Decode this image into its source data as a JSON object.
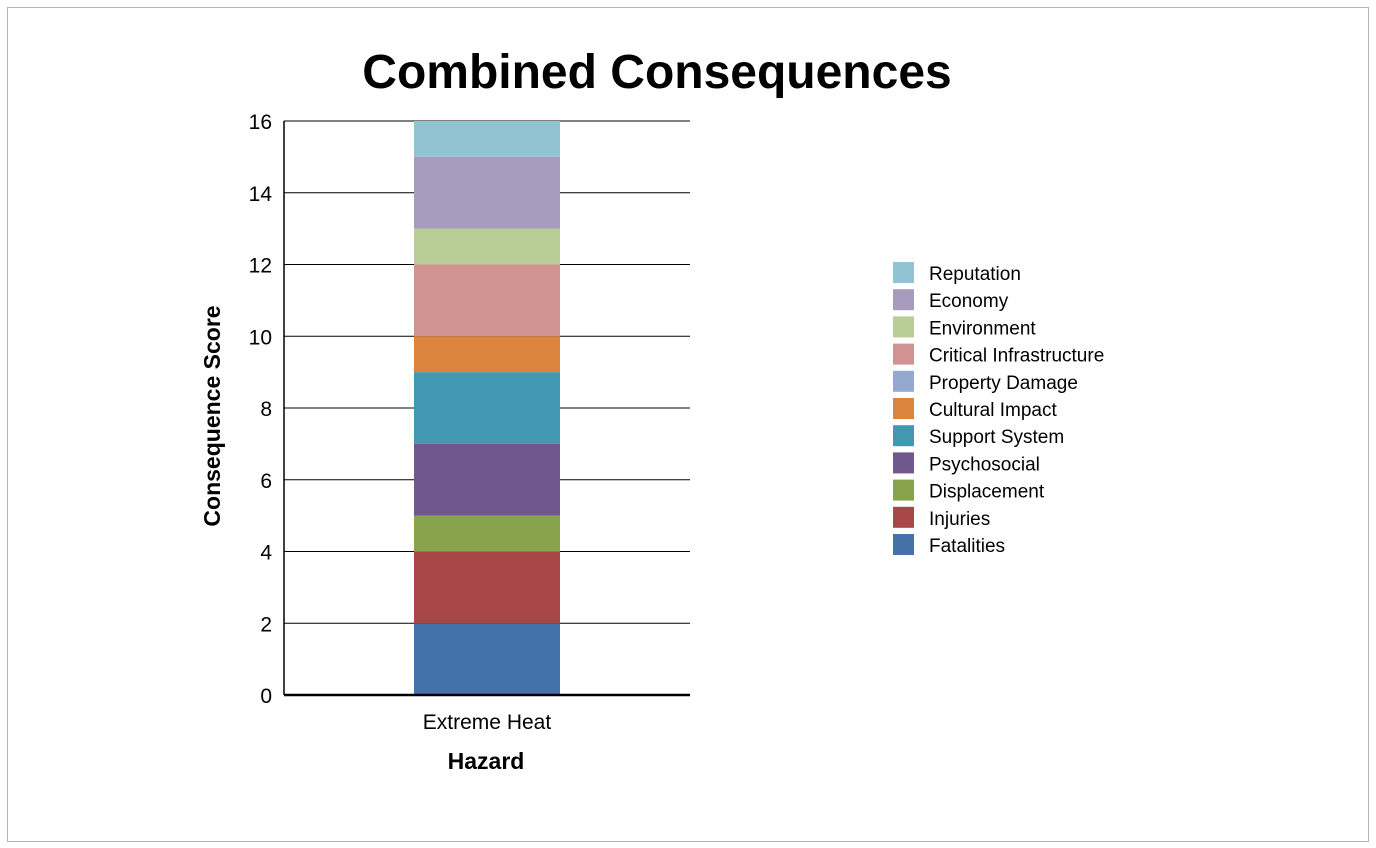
{
  "chart_data": {
    "type": "bar",
    "stacked": true,
    "title": "Combined Consequences",
    "xlabel": "Hazard",
    "ylabel": "Consequence Score",
    "ylim": [
      0,
      16
    ],
    "yticks": [
      0,
      2,
      4,
      6,
      8,
      10,
      12,
      14,
      16
    ],
    "grid": true,
    "legend_position": "right",
    "categories": [
      "Extreme Heat"
    ],
    "series": [
      {
        "name": "Fatalities",
        "color": "#4472a8",
        "values": [
          2
        ]
      },
      {
        "name": "Injuries",
        "color": "#a84747",
        "values": [
          2
        ]
      },
      {
        "name": "Displacement",
        "color": "#87a34b",
        "values": [
          1
        ]
      },
      {
        "name": "Psychosocial",
        "color": "#70588f",
        "values": [
          2
        ]
      },
      {
        "name": "Support System",
        "color": "#4198b0",
        "values": [
          2
        ]
      },
      {
        "name": "Cultural Impact",
        "color": "#db843d",
        "values": [
          1
        ]
      },
      {
        "name": "Property Damage",
        "color": "#93a9d0",
        "values": [
          0
        ]
      },
      {
        "name": "Critical Infrastructure",
        "color": "#d19392",
        "values": [
          2
        ]
      },
      {
        "name": "Environment",
        "color": "#b9cd96",
        "values": [
          1
        ]
      },
      {
        "name": "Economy",
        "color": "#a99bbd",
        "values": [
          2
        ]
      },
      {
        "name": "Reputation",
        "color": "#92c3d4",
        "values": [
          1
        ]
      }
    ]
  }
}
